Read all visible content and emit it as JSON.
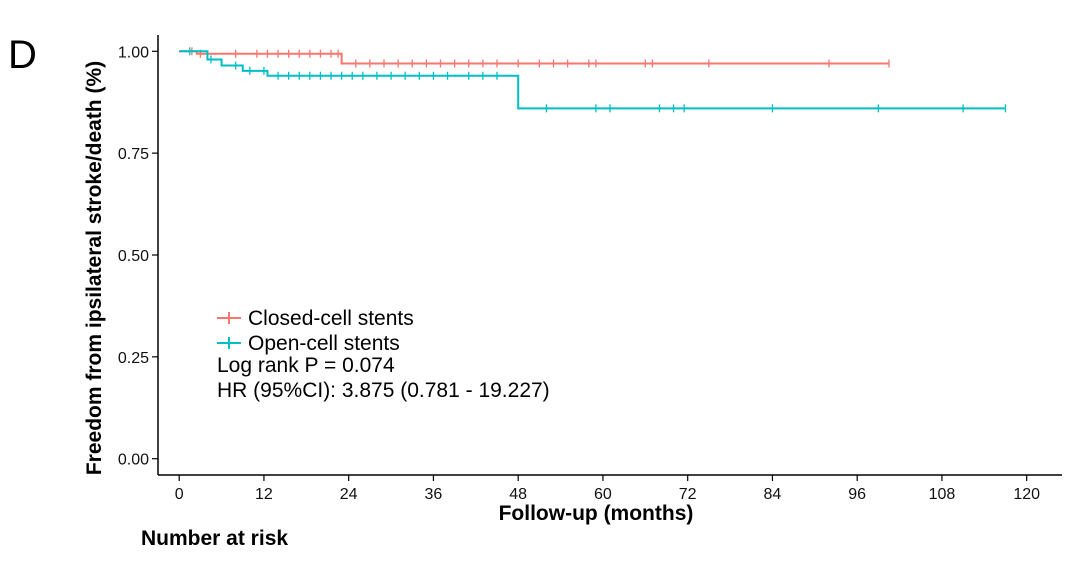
{
  "panel_label": "D",
  "chart_data": {
    "type": "line",
    "subtype": "kaplan-meier",
    "title": "",
    "xlabel": "Follow-up (months)",
    "ylabel": "Freedom from ipsilateral stroke/death (%)",
    "xlim": [
      -3,
      125
    ],
    "ylim": [
      -0.04,
      1.04
    ],
    "xticks": [
      0,
      12,
      24,
      36,
      48,
      60,
      72,
      84,
      96,
      108,
      120
    ],
    "xtick_labels": [
      "0",
      "12",
      "24",
      "36",
      "48",
      "60",
      "72",
      "84",
      "96",
      "108",
      "120"
    ],
    "yticks": [
      0,
      0.25,
      0.5,
      0.75,
      1
    ],
    "ytick_labels": [
      "0.00",
      "0.25",
      "0.50",
      "0.75",
      "1.00"
    ],
    "grid": false,
    "legend_position": "bottom-left",
    "series": [
      {
        "name": "Closed-cell stents",
        "color": "#F8766D",
        "steps": [
          [
            0,
            1.0
          ],
          [
            2.5,
            0.994
          ],
          [
            23,
            0.97
          ],
          [
            100.5,
            0.97
          ]
        ],
        "censored": [
          1.8,
          3,
          8,
          11,
          12.5,
          14,
          15.5,
          17,
          18.5,
          20,
          21.5,
          22.5,
          25,
          27,
          29,
          31,
          33,
          35,
          37,
          39,
          41,
          43,
          45,
          48,
          51,
          53,
          55,
          58,
          59,
          66,
          67,
          75,
          92,
          100.5
        ]
      },
      {
        "name": "Open-cell stents",
        "color": "#00BFC4",
        "steps": [
          [
            0,
            1.0
          ],
          [
            4,
            0.98
          ],
          [
            6,
            0.965
          ],
          [
            9,
            0.952
          ],
          [
            12.5,
            0.94
          ],
          [
            48,
            0.86
          ],
          [
            117,
            0.86
          ]
        ],
        "censored": [
          1.5,
          4.5,
          8,
          10,
          12,
          14,
          15.5,
          17,
          18.5,
          20,
          21.5,
          23,
          24.5,
          26,
          28,
          30,
          32,
          34,
          36,
          38,
          41,
          43,
          45,
          52,
          59,
          61,
          68,
          70,
          71.5,
          84,
          99,
          111,
          117
        ]
      }
    ],
    "annotations": [
      "Log rank P = 0.074",
      "HR (95%CI): 3.875 (0.781 - 19.227)"
    ]
  },
  "risk_table": {
    "title": "Number at risk"
  }
}
